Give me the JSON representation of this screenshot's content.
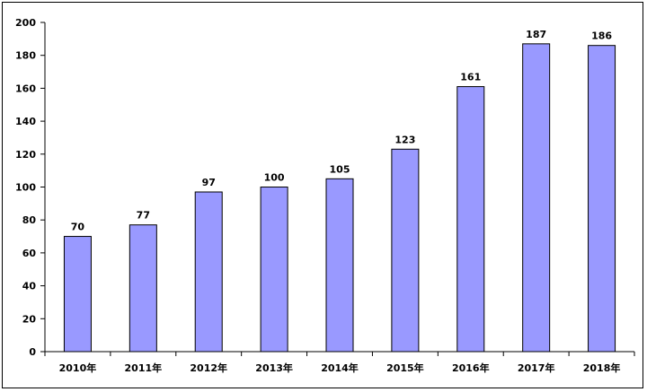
{
  "chart_data": {
    "type": "bar",
    "title": "",
    "xlabel": "",
    "ylabel": "",
    "categories": [
      "2010年",
      "2011年",
      "2012年",
      "2013年",
      "2014年",
      "2015年",
      "2016年",
      "2017年",
      "2018年"
    ],
    "values": [
      70,
      77,
      97,
      100,
      105,
      123,
      161,
      187,
      186
    ],
    "ylim": [
      0,
      200
    ],
    "yticks": [
      0,
      20,
      40,
      60,
      80,
      100,
      120,
      140,
      160,
      180,
      200
    ],
    "grid": false,
    "legend": "none",
    "colors": {
      "bar_fill": "#9999ff",
      "bar_stroke": "#000000",
      "axis": "#000000"
    }
  }
}
